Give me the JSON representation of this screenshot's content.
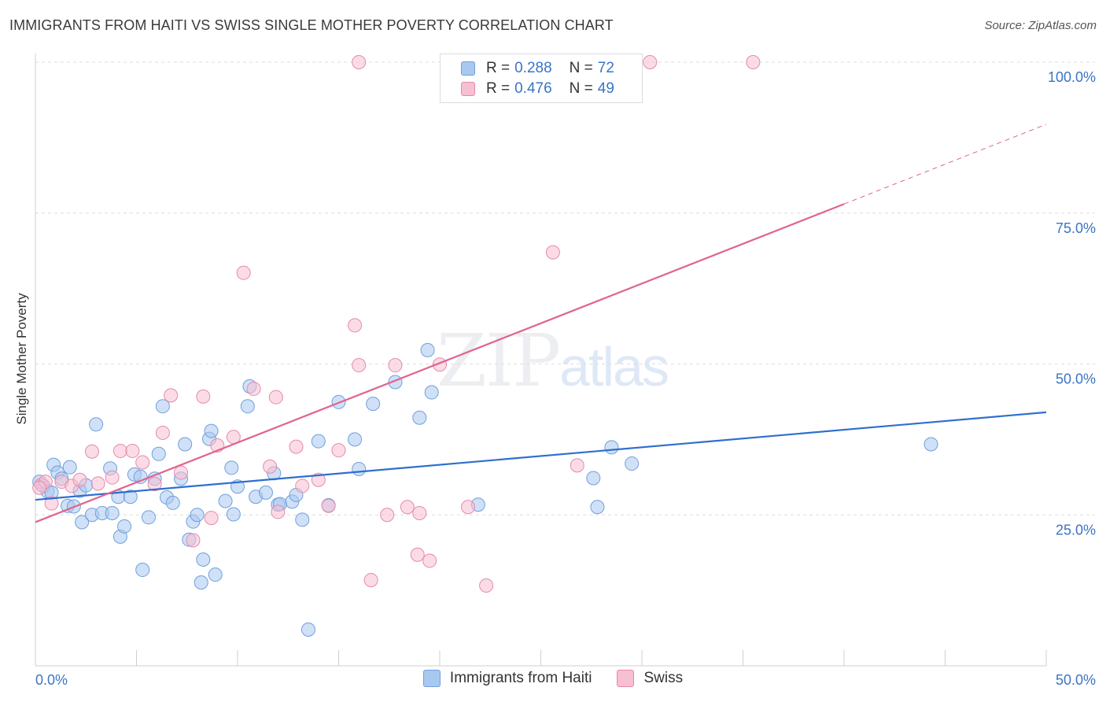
{
  "header": {
    "title": "IMMIGRANTS FROM HAITI VS SWISS SINGLE MOTHER POVERTY CORRELATION CHART",
    "source": "Source: ZipAtlas.com"
  },
  "watermark": {
    "zip": "ZIP",
    "atlas": "atlas"
  },
  "legend_top": [
    {
      "r_label": "R =",
      "r_value": "0.288",
      "n_label": "N =",
      "n_value": "72"
    },
    {
      "r_label": "R =",
      "r_value": "0.476",
      "n_label": "N =",
      "n_value": "49"
    }
  ],
  "legend_bottom": [
    {
      "label": "Immigrants from Haiti"
    },
    {
      "label": "Swiss"
    }
  ],
  "colors": {
    "haiti_fill": "#a9c8f0",
    "haiti_stroke": "#6f9fdc",
    "haiti_line": "#2f6fce",
    "swiss_fill": "#f7bfd2",
    "swiss_stroke": "#e58aaa",
    "swiss_line": "#e0648d",
    "tick_text": "#3b74c6",
    "grid": "#dddddd"
  },
  "chart_data": {
    "type": "scatter",
    "title": "IMMIGRANTS FROM HAITI VS SWISS SINGLE MOTHER POVERTY CORRELATION CHART",
    "xlabel": "",
    "ylabel": "Single Mother Poverty",
    "xlim": [
      0,
      50
    ],
    "ylim": [
      0,
      100
    ],
    "x_tick_labels": [
      "0.0%",
      "50.0%"
    ],
    "y_ticks": [
      25,
      50,
      75,
      100
    ],
    "y_tick_labels": [
      "25.0%",
      "50.0%",
      "75.0%",
      "100.0%"
    ],
    "grid": true,
    "series": [
      {
        "name": "Immigrants from Haiti",
        "points": [
          [
            0.2,
            30.5
          ],
          [
            0.4,
            29.8
          ],
          [
            0.6,
            28.9
          ],
          [
            0.9,
            33.3
          ],
          [
            1.1,
            32.0
          ],
          [
            1.3,
            31.0
          ],
          [
            1.6,
            26.5
          ],
          [
            1.7,
            32.9
          ],
          [
            1.9,
            26.4
          ],
          [
            2.2,
            29.0
          ],
          [
            2.5,
            29.9
          ],
          [
            2.3,
            23.8
          ],
          [
            2.8,
            25.0
          ],
          [
            3.3,
            25.3
          ],
          [
            3.0,
            40.0
          ],
          [
            3.8,
            25.3
          ],
          [
            3.7,
            32.7
          ],
          [
            4.1,
            28.0
          ],
          [
            4.2,
            21.4
          ],
          [
            4.4,
            23.1
          ],
          [
            4.7,
            28.0
          ],
          [
            4.9,
            31.7
          ],
          [
            5.2,
            31.3
          ],
          [
            5.3,
            15.9
          ],
          [
            5.6,
            24.6
          ],
          [
            5.9,
            31.0
          ],
          [
            6.1,
            35.1
          ],
          [
            6.3,
            43.0
          ],
          [
            6.5,
            27.9
          ],
          [
            6.8,
            27.0
          ],
          [
            7.2,
            31.0
          ],
          [
            7.4,
            36.7
          ],
          [
            7.6,
            20.9
          ],
          [
            7.8,
            23.9
          ],
          [
            8.0,
            25.0
          ],
          [
            8.2,
            13.8
          ],
          [
            8.3,
            17.6
          ],
          [
            8.6,
            37.6
          ],
          [
            8.7,
            38.9
          ],
          [
            8.9,
            15.1
          ],
          [
            9.4,
            27.3
          ],
          [
            9.7,
            32.8
          ],
          [
            9.8,
            25.1
          ],
          [
            10.0,
            29.7
          ],
          [
            10.5,
            43.0
          ],
          [
            10.6,
            46.3
          ],
          [
            10.9,
            28.0
          ],
          [
            11.4,
            28.7
          ],
          [
            11.8,
            31.9
          ],
          [
            12.0,
            26.7
          ],
          [
            12.1,
            26.8
          ],
          [
            12.7,
            27.2
          ],
          [
            12.9,
            28.3
          ],
          [
            13.2,
            24.2
          ],
          [
            13.5,
            6.0
          ],
          [
            14.0,
            37.2
          ],
          [
            14.5,
            26.6
          ],
          [
            15.0,
            43.7
          ],
          [
            15.8,
            37.5
          ],
          [
            16.0,
            32.6
          ],
          [
            16.7,
            43.4
          ],
          [
            17.8,
            47.0
          ],
          [
            19.0,
            41.1
          ],
          [
            19.4,
            52.3
          ],
          [
            19.6,
            45.3
          ],
          [
            21.9,
            26.7
          ],
          [
            27.6,
            31.1
          ],
          [
            27.8,
            26.3
          ],
          [
            28.5,
            36.2
          ],
          [
            29.5,
            33.5
          ],
          [
            44.3,
            36.7
          ],
          [
            0.8,
            28.7
          ]
        ]
      },
      {
        "name": "Swiss",
        "points": [
          [
            0.3,
            30.0
          ],
          [
            0.8,
            26.9
          ],
          [
            1.3,
            30.5
          ],
          [
            1.8,
            29.8
          ],
          [
            2.2,
            30.8
          ],
          [
            2.8,
            35.5
          ],
          [
            3.1,
            30.2
          ],
          [
            3.8,
            31.2
          ],
          [
            4.2,
            35.6
          ],
          [
            4.8,
            35.6
          ],
          [
            5.3,
            33.7
          ],
          [
            5.9,
            30.1
          ],
          [
            6.3,
            38.6
          ],
          [
            6.7,
            44.8
          ],
          [
            7.2,
            32.0
          ],
          [
            7.8,
            20.8
          ],
          [
            8.3,
            44.6
          ],
          [
            8.7,
            24.5
          ],
          [
            9.0,
            36.5
          ],
          [
            9.8,
            37.9
          ],
          [
            10.3,
            65.1
          ],
          [
            10.8,
            45.9
          ],
          [
            11.6,
            33.0
          ],
          [
            11.9,
            44.5
          ],
          [
            12.0,
            25.5
          ],
          [
            12.9,
            36.3
          ],
          [
            13.2,
            29.8
          ],
          [
            14.0,
            30.8
          ],
          [
            14.5,
            26.5
          ],
          [
            15.0,
            35.7
          ],
          [
            15.8,
            56.4
          ],
          [
            16.0,
            49.8
          ],
          [
            16.0,
            100.0
          ],
          [
            16.6,
            14.2
          ],
          [
            17.4,
            25.0
          ],
          [
            17.8,
            49.8
          ],
          [
            18.4,
            26.3
          ],
          [
            18.9,
            18.4
          ],
          [
            19.0,
            25.3
          ],
          [
            19.5,
            17.4
          ],
          [
            20.0,
            49.9
          ],
          [
            21.4,
            26.3
          ],
          [
            22.3,
            13.3
          ],
          [
            25.6,
            68.5
          ],
          [
            26.8,
            33.2
          ],
          [
            30.4,
            100.0
          ],
          [
            35.5,
            100.0
          ],
          [
            0.5,
            30.5
          ],
          [
            0.2,
            29.5
          ]
        ]
      }
    ],
    "trend_lines": [
      {
        "series": "Immigrants from Haiti",
        "x": [
          0,
          50
        ],
        "y": [
          27.5,
          42.0
        ],
        "style": "solid"
      },
      {
        "series": "Swiss",
        "x": [
          0,
          40
        ],
        "y": [
          23.8,
          76.5
        ],
        "style": "solid"
      },
      {
        "series": "Swiss",
        "x": [
          40,
          50
        ],
        "y": [
          76.5,
          89.7
        ],
        "style": "dashed"
      }
    ],
    "legend_position": "top-center"
  }
}
